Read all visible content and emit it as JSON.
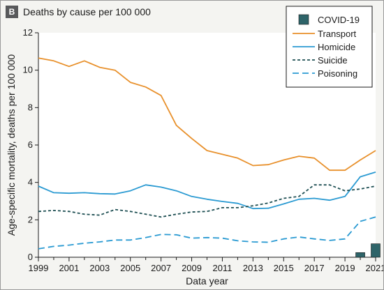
{
  "panel": {
    "badge": "B",
    "title": "Deaths by cause per 100 000"
  },
  "chart_data": {
    "type": "line",
    "xlabel": "Data year",
    "ylabel": "Age-specific mortality, deaths per 100 000",
    "xlim": [
      1999,
      2021
    ],
    "ylim": [
      0,
      12
    ],
    "x_ticks": [
      1999,
      2001,
      2003,
      2005,
      2007,
      2009,
      2011,
      2013,
      2015,
      2017,
      2019,
      2021
    ],
    "y_ticks": [
      0,
      2,
      4,
      6,
      8,
      10,
      12
    ],
    "grid": false,
    "legend_position": "top-right",
    "x": [
      1999,
      2000,
      2001,
      2002,
      2003,
      2004,
      2005,
      2006,
      2007,
      2008,
      2009,
      2010,
      2011,
      2012,
      2013,
      2014,
      2015,
      2016,
      2017,
      2018,
      2019,
      2020,
      2021
    ],
    "series": [
      {
        "name": "Transport",
        "color": "#e8902b",
        "style": "solid",
        "values": [
          10.65,
          10.5,
          10.2,
          10.5,
          10.15,
          10.0,
          9.35,
          9.1,
          8.65,
          7.05,
          6.35,
          5.7,
          5.5,
          5.3,
          4.9,
          4.95,
          5.2,
          5.4,
          5.3,
          4.65,
          4.65,
          5.2,
          5.7
        ]
      },
      {
        "name": "Homicide",
        "color": "#2a9ad2",
        "style": "solid",
        "values": [
          3.8,
          3.45,
          3.42,
          3.45,
          3.4,
          3.38,
          3.55,
          3.87,
          3.75,
          3.55,
          3.25,
          3.1,
          2.98,
          2.88,
          2.6,
          2.62,
          2.85,
          3.1,
          3.15,
          3.05,
          3.25,
          4.3,
          4.55
        ]
      },
      {
        "name": "Suicide",
        "color": "#1d4e52",
        "style": "dotted",
        "values": [
          2.45,
          2.5,
          2.45,
          2.3,
          2.25,
          2.55,
          2.45,
          2.3,
          2.15,
          2.3,
          2.42,
          2.45,
          2.65,
          2.65,
          2.75,
          2.9,
          3.15,
          3.25,
          3.87,
          3.87,
          3.55,
          3.65,
          3.8
        ]
      },
      {
        "name": "Poisoning",
        "color": "#2a9ad2",
        "style": "dashed",
        "values": [
          0.45,
          0.58,
          0.65,
          0.75,
          0.82,
          0.92,
          0.92,
          1.05,
          1.22,
          1.2,
          1.02,
          1.05,
          1.02,
          0.88,
          0.82,
          0.8,
          0.98,
          1.08,
          0.98,
          0.9,
          0.98,
          1.92,
          2.15
        ]
      }
    ],
    "bars": {
      "name": "COVID-19",
      "color": "#2e6469",
      "x": [
        2020,
        2021
      ],
      "values": [
        0.25,
        0.72
      ]
    }
  }
}
